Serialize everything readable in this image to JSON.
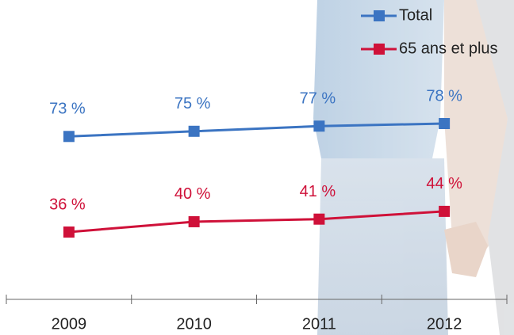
{
  "chart_data": {
    "type": "line",
    "categories": [
      "2009",
      "2010",
      "2011",
      "2012"
    ],
    "series": [
      {
        "name": "Total",
        "color": "#3b74c2",
        "values": [
          73,
          75,
          77,
          78
        ],
        "value_labels": [
          "73 %",
          "75 %",
          "77 %",
          "78 %"
        ]
      },
      {
        "name": "65 ans et plus",
        "color": "#cf1139",
        "values": [
          36,
          40,
          41,
          44
        ],
        "value_labels": [
          "36 %",
          "40 %",
          "41 %",
          "44 %"
        ]
      }
    ],
    "legend": "top-right"
  }
}
